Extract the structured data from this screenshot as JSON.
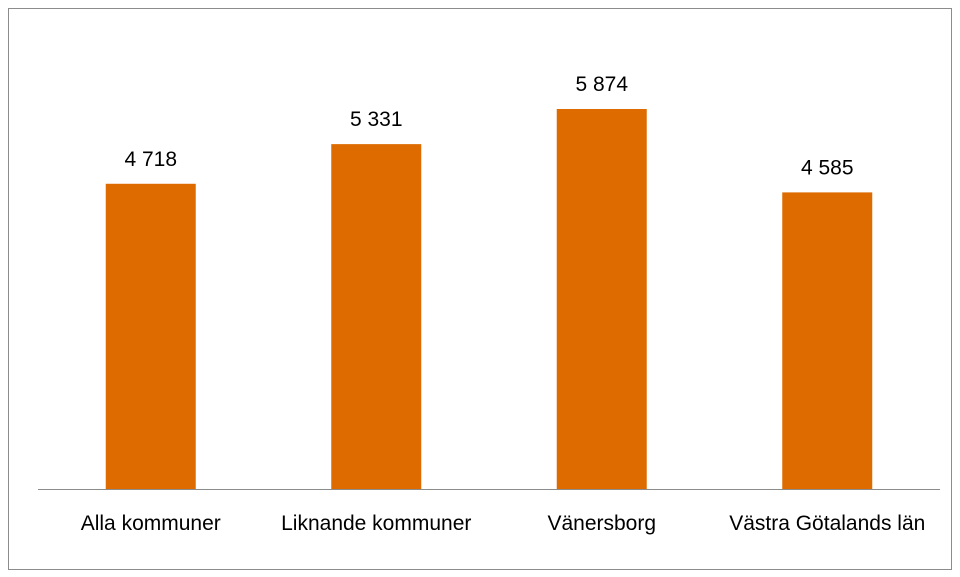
{
  "chart_data": {
    "type": "bar",
    "categories": [
      "Alla kommuner",
      "Liknande kommuner",
      "Vänersborg",
      "Västra Götalands län"
    ],
    "values": [
      4718,
      5331,
      5874,
      4585
    ],
    "value_labels": [
      "4 718",
      "5 331",
      "5 874",
      "4 585"
    ],
    "color": "#dd6b00"
  }
}
